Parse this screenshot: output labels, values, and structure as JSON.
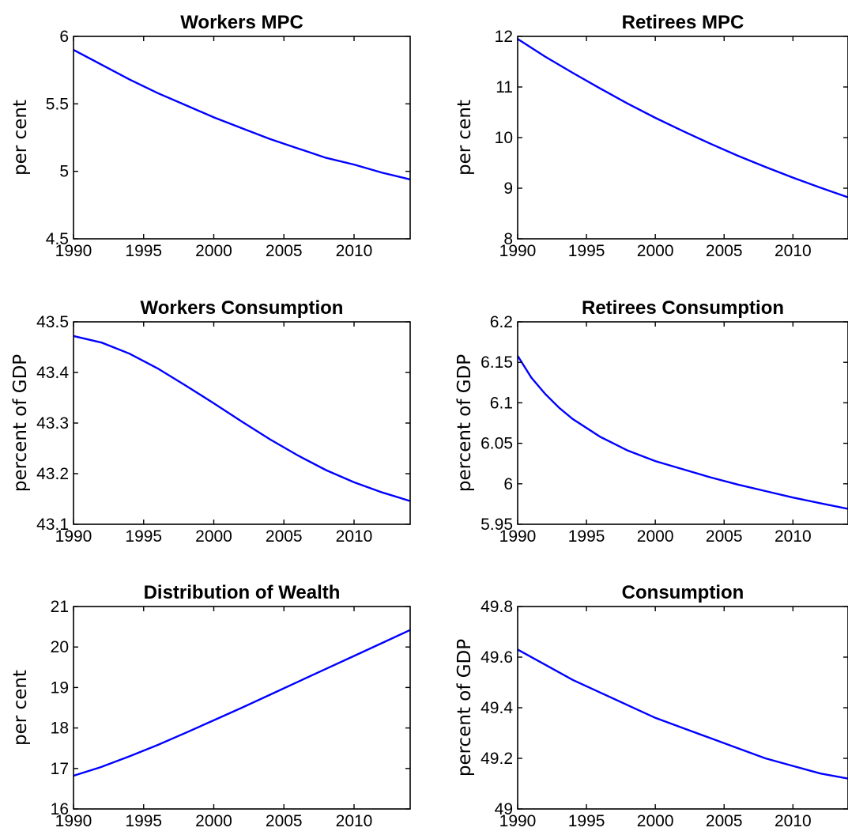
{
  "figure": {
    "line_color": "#0000ff",
    "axis_color": "#000000",
    "background": "#ffffff"
  },
  "chart_data": [
    {
      "type": "line",
      "title": "Workers MPC",
      "ylabel": "per cent",
      "xlabel": "",
      "xlim": [
        1990,
        2014
      ],
      "ylim": [
        4.5,
        6
      ],
      "xticks": [
        1990,
        1995,
        2000,
        2005,
        2010
      ],
      "yticks": [
        4.5,
        5,
        5.5,
        6
      ],
      "ytick_labels": [
        "4.5",
        "5",
        "5.5",
        "6"
      ],
      "grid": false,
      "series": [
        {
          "x": [
            1990,
            1992,
            1994,
            1996,
            1998,
            2000,
            2002,
            2004,
            2006,
            2008,
            2010,
            2012,
            2014
          ],
          "values": [
            5.9,
            5.79,
            5.68,
            5.58,
            5.49,
            5.4,
            5.32,
            5.24,
            5.17,
            5.1,
            5.05,
            4.99,
            4.94
          ]
        }
      ]
    },
    {
      "type": "line",
      "title": "Retirees MPC",
      "ylabel": "per cent",
      "xlabel": "",
      "xlim": [
        1990,
        2014
      ],
      "ylim": [
        8,
        12
      ],
      "xticks": [
        1990,
        1995,
        2000,
        2005,
        2010
      ],
      "yticks": [
        8,
        9,
        10,
        11,
        12
      ],
      "ytick_labels": [
        "8",
        "9",
        "10",
        "11",
        "12"
      ],
      "grid": false,
      "series": [
        {
          "x": [
            1990,
            1992,
            1994,
            1996,
            1998,
            2000,
            2002,
            2004,
            2006,
            2008,
            2010,
            2012,
            2014
          ],
          "values": [
            11.95,
            11.6,
            11.28,
            10.97,
            10.67,
            10.39,
            10.13,
            9.88,
            9.64,
            9.42,
            9.21,
            9.01,
            8.82
          ]
        }
      ]
    },
    {
      "type": "line",
      "title": "Workers Consumption",
      "ylabel": "percent of GDP",
      "xlabel": "",
      "xlim": [
        1990,
        2014
      ],
      "ylim": [
        43.1,
        43.5
      ],
      "xticks": [
        1990,
        1995,
        2000,
        2005,
        2010
      ],
      "yticks": [
        43.1,
        43.2,
        43.3,
        43.4,
        43.5
      ],
      "ytick_labels": [
        "43.1",
        "43.2",
        "43.3",
        "43.4",
        "43.5"
      ],
      "grid": false,
      "series": [
        {
          "x": [
            1990,
            1992,
            1994,
            1996,
            1998,
            2000,
            2002,
            2004,
            2006,
            2008,
            2010,
            2012,
            2014
          ],
          "values": [
            43.472,
            43.459,
            43.437,
            43.408,
            43.374,
            43.339,
            43.303,
            43.268,
            43.236,
            43.207,
            43.183,
            43.163,
            43.146
          ]
        }
      ]
    },
    {
      "type": "line",
      "title": "Retirees Consumption",
      "ylabel": "percent of GDP",
      "xlabel": "",
      "xlim": [
        1990,
        2014
      ],
      "ylim": [
        5.95,
        6.2
      ],
      "xticks": [
        1990,
        1995,
        2000,
        2005,
        2010
      ],
      "yticks": [
        5.95,
        6,
        6.05,
        6.1,
        6.15,
        6.2
      ],
      "ytick_labels": [
        "5.95",
        "6",
        "6.05",
        "6.1",
        "6.15",
        "6.2"
      ],
      "grid": false,
      "series": [
        {
          "x": [
            1990,
            1991,
            1992,
            1993,
            1994,
            1996,
            1998,
            2000,
            2002,
            2004,
            2006,
            2008,
            2010,
            2012,
            2014
          ],
          "values": [
            6.158,
            6.131,
            6.111,
            6.094,
            6.08,
            6.058,
            6.041,
            6.028,
            6.018,
            6.008,
            5.999,
            5.991,
            5.983,
            5.976,
            5.969
          ]
        }
      ]
    },
    {
      "type": "line",
      "title": "Distribution of Wealth",
      "ylabel": "per cent",
      "xlabel": "",
      "xlim": [
        1990,
        2014
      ],
      "ylim": [
        16,
        21
      ],
      "xticks": [
        1990,
        1995,
        2000,
        2005,
        2010
      ],
      "yticks": [
        16,
        17,
        18,
        19,
        20,
        21
      ],
      "ytick_labels": [
        "16",
        "17",
        "18",
        "19",
        "20",
        "21"
      ],
      "grid": false,
      "series": [
        {
          "x": [
            1990,
            1992,
            1994,
            1996,
            1998,
            2000,
            2002,
            2004,
            2006,
            2008,
            2010,
            2012,
            2014
          ],
          "values": [
            16.82,
            17.04,
            17.3,
            17.58,
            17.88,
            18.19,
            18.5,
            18.82,
            19.14,
            19.46,
            19.78,
            20.1,
            20.42
          ]
        }
      ]
    },
    {
      "type": "line",
      "title": "Consumption",
      "ylabel": "percent of GDP",
      "xlabel": "",
      "xlim": [
        1990,
        2014
      ],
      "ylim": [
        49,
        49.8
      ],
      "xticks": [
        1990,
        1995,
        2000,
        2005,
        2010
      ],
      "yticks": [
        49,
        49.2,
        49.4,
        49.6,
        49.8
      ],
      "ytick_labels": [
        "49",
        "49.2",
        "49.4",
        "49.6",
        "49.8"
      ],
      "grid": false,
      "series": [
        {
          "x": [
            1990,
            1992,
            1994,
            1996,
            1998,
            2000,
            2002,
            2004,
            2006,
            2008,
            2010,
            2012,
            2014
          ],
          "values": [
            49.63,
            49.57,
            49.51,
            49.46,
            49.41,
            49.36,
            49.32,
            49.28,
            49.24,
            49.2,
            49.17,
            49.14,
            49.12
          ]
        }
      ]
    }
  ]
}
